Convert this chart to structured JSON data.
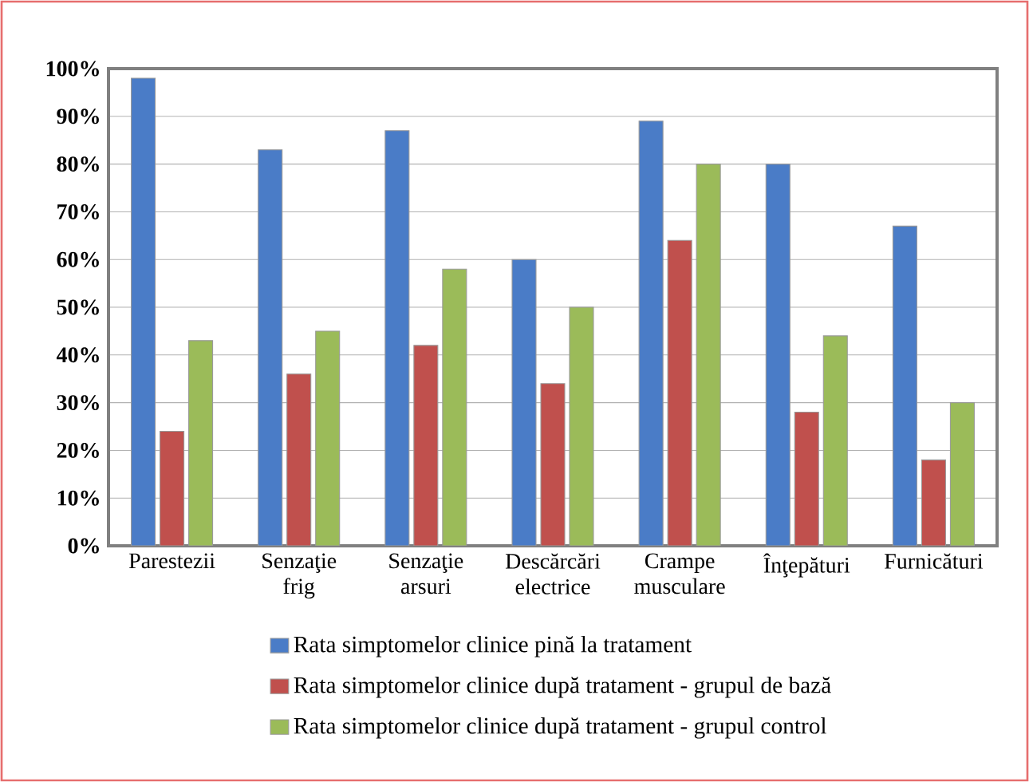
{
  "chart_data": {
    "type": "bar",
    "categories": [
      "Parestezii",
      "Senzaţie frig",
      "Senzaţie arsuri",
      "Descărcări electrice",
      "Crampe musculare",
      "Înţepături",
      "Furnicături"
    ],
    "series": [
      {
        "name": "Rata simptomelor clinice pină la tratament",
        "color": "#4a7cc7",
        "values": [
          98,
          83,
          87,
          60,
          89,
          80,
          67
        ]
      },
      {
        "name": "Rata simptomelor clinice după tratament - grupul de bază",
        "color": "#c0504d",
        "values": [
          24,
          36,
          42,
          34,
          64,
          28,
          18
        ]
      },
      {
        "name": "Rata simptomelor clinice după tratament - grupul control",
        "color": "#9bbb59",
        "values": [
          43,
          45,
          58,
          50,
          80,
          44,
          30
        ]
      }
    ],
    "ylim": [
      0,
      100
    ],
    "yticks": [
      {
        "value": 0,
        "label": "0%"
      },
      {
        "value": 10,
        "label": "10%"
      },
      {
        "value": 20,
        "label": "20%"
      },
      {
        "value": 30,
        "label": "30%"
      },
      {
        "value": 40,
        "label": "40%"
      },
      {
        "value": 50,
        "label": "50%"
      },
      {
        "value": 60,
        "label": "60%"
      },
      {
        "value": 70,
        "label": "70%"
      },
      {
        "value": 80,
        "label": "80%"
      },
      {
        "value": 90,
        "label": "90%"
      },
      {
        "value": 100,
        "label": "100%"
      }
    ],
    "grid": "y",
    "legend": "bottom"
  }
}
